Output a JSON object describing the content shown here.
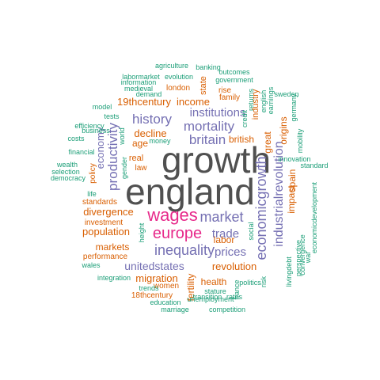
{
  "colors": {
    "grey": "#505050",
    "teal": "#1b9e77",
    "orange": "#d95f02",
    "purple": "#7570b3",
    "magenta": "#e7298a"
  },
  "words": [
    {
      "text": "growth",
      "color": "grey"
    },
    {
      "text": "england",
      "color": "grey"
    },
    {
      "text": "wages",
      "color": "magenta"
    },
    {
      "text": "europe",
      "color": "magenta"
    },
    {
      "text": "market",
      "color": "purple"
    },
    {
      "text": "inequality",
      "color": "purple"
    },
    {
      "text": "britain",
      "color": "purple"
    },
    {
      "text": "mortality",
      "color": "purple"
    },
    {
      "text": "history",
      "color": "purple"
    },
    {
      "text": "institutions",
      "color": "purple"
    },
    {
      "text": "productivity",
      "color": "purple"
    },
    {
      "text": "economicgrowth",
      "color": "purple"
    },
    {
      "text": "industrialrevolution",
      "color": "purple"
    },
    {
      "text": "trade",
      "color": "purple"
    },
    {
      "text": "prices",
      "color": "purple"
    },
    {
      "text": "unitedstates",
      "color": "purple"
    },
    {
      "text": "economy",
      "color": "purple"
    },
    {
      "text": "divergence",
      "color": "orange"
    },
    {
      "text": "population",
      "color": "orange"
    },
    {
      "text": "revolution",
      "color": "orange"
    },
    {
      "text": "migration",
      "color": "orange"
    },
    {
      "text": "19thcentury",
      "color": "orange"
    },
    {
      "text": "income",
      "color": "orange"
    },
    {
      "text": "decline",
      "color": "orange"
    },
    {
      "text": "british",
      "color": "orange"
    },
    {
      "text": "age",
      "color": "orange"
    },
    {
      "text": "real",
      "color": "orange"
    },
    {
      "text": "markets",
      "color": "orange"
    },
    {
      "text": "labor",
      "color": "orange"
    },
    {
      "text": "health",
      "color": "orange"
    },
    {
      "text": "fertility",
      "color": "orange"
    },
    {
      "text": "origins",
      "color": "orange"
    },
    {
      "text": "great",
      "color": "orange"
    },
    {
      "text": "impact",
      "color": "orange"
    },
    {
      "text": "spain",
      "color": "orange"
    },
    {
      "text": "industry",
      "color": "orange"
    },
    {
      "text": "state",
      "color": "orange"
    },
    {
      "text": "london",
      "color": "orange"
    },
    {
      "text": "family",
      "color": "orange"
    },
    {
      "text": "rise",
      "color": "orange"
    },
    {
      "text": "law",
      "color": "orange"
    },
    {
      "text": "policy",
      "color": "orange"
    },
    {
      "text": "standards",
      "color": "orange"
    },
    {
      "text": "investment",
      "color": "orange"
    },
    {
      "text": "performance",
      "color": "orange"
    },
    {
      "text": "women",
      "color": "orange"
    },
    {
      "text": "18thcentury",
      "color": "orange"
    },
    {
      "text": "agriculture",
      "color": "teal"
    },
    {
      "text": "banking",
      "color": "teal"
    },
    {
      "text": "labormarket",
      "color": "teal"
    },
    {
      "text": "evolution",
      "color": "teal"
    },
    {
      "text": "outcomes",
      "color": "teal"
    },
    {
      "text": "information",
      "color": "teal"
    },
    {
      "text": "government",
      "color": "teal"
    },
    {
      "text": "medieval",
      "color": "teal"
    },
    {
      "text": "demand",
      "color": "teal"
    },
    {
      "text": "model",
      "color": "teal"
    },
    {
      "text": "tests",
      "color": "teal"
    },
    {
      "text": "efficiency",
      "color": "teal"
    },
    {
      "text": "business",
      "color": "teal"
    },
    {
      "text": "costs",
      "color": "teal"
    },
    {
      "text": "money",
      "color": "teal"
    },
    {
      "text": "world",
      "color": "teal"
    },
    {
      "text": "financial",
      "color": "teal"
    },
    {
      "text": "wealth",
      "color": "teal"
    },
    {
      "text": "selection",
      "color": "teal"
    },
    {
      "text": "democracy",
      "color": "teal"
    },
    {
      "text": "gender",
      "color": "teal"
    },
    {
      "text": "life",
      "color": "teal"
    },
    {
      "text": "wales",
      "color": "teal"
    },
    {
      "text": "integration",
      "color": "teal"
    },
    {
      "text": "trends",
      "color": "teal"
    },
    {
      "text": "education",
      "color": "teal"
    },
    {
      "text": "marriage",
      "color": "teal"
    },
    {
      "text": "competition",
      "color": "teal"
    },
    {
      "text": "unemployment",
      "color": "teal"
    },
    {
      "text": "stature",
      "color": "teal"
    },
    {
      "text": "transition",
      "color": "teal"
    },
    {
      "text": "rates",
      "color": "teal"
    },
    {
      "text": "france",
      "color": "teal"
    },
    {
      "text": "politics",
      "color": "teal"
    },
    {
      "text": "risk",
      "color": "teal"
    },
    {
      "text": "social",
      "color": "teal"
    },
    {
      "text": "height",
      "color": "teal"
    },
    {
      "text": "debt",
      "color": "teal"
    },
    {
      "text": "living",
      "color": "teal"
    },
    {
      "text": "perspective",
      "color": "teal"
    },
    {
      "text": "convergence",
      "color": "teal"
    },
    {
      "text": "war",
      "color": "teal"
    },
    {
      "text": "economicdevelopment",
      "color": "teal"
    },
    {
      "text": "innovation",
      "color": "teal"
    },
    {
      "text": "standard",
      "color": "teal"
    },
    {
      "text": "mobility",
      "color": "teal"
    },
    {
      "text": "germany",
      "color": "teal"
    },
    {
      "text": "sweden",
      "color": "teal"
    },
    {
      "text": "earnings",
      "color": "teal"
    },
    {
      "text": "english",
      "color": "teal"
    },
    {
      "text": "returns",
      "color": "teal"
    },
    {
      "text": "credit",
      "color": "teal"
    },
    {
      "text": "crisis",
      "color": "teal"
    }
  ]
}
